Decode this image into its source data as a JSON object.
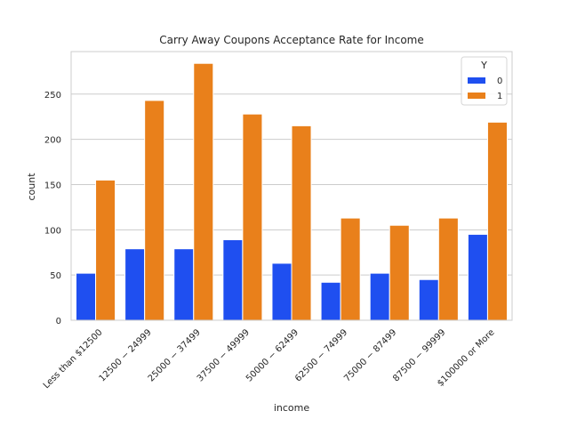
{
  "chart_data": {
    "type": "bar",
    "title": "Carry Away Coupons Acceptance Rate for Income",
    "xlabel": "income",
    "ylabel": "count",
    "categories": [
      "Less than $12500",
      "$12500 - $24999",
      "$25000 - $37499",
      "$37500 - $49999",
      "$50000 - $62499",
      "$62500 - $74999",
      "$75000 - $87499",
      "$87500 - $99999",
      "$100000 or More"
    ],
    "tick_labels": [
      "Less than $12500",
      "12500 − 24999",
      "25000 − 37499",
      "37500 − 49999",
      "50000 − 62499",
      "62500 − 74999",
      "75000 − 87499",
      "87500 − 99999",
      "$100000 or More"
    ],
    "series": [
      {
        "name": "0",
        "color": "#1f4ff0",
        "values": [
          52,
          79,
          79,
          89,
          63,
          42,
          52,
          45,
          95
        ]
      },
      {
        "name": "1",
        "color": "#e9801b",
        "values": [
          155,
          243,
          284,
          228,
          215,
          113,
          105,
          113,
          219
        ]
      }
    ],
    "legend": {
      "title": "Y",
      "position": "top-right"
    },
    "ylim": [
      0,
      297
    ],
    "yticks": [
      0,
      50,
      100,
      150,
      200,
      250
    ],
    "grid": true
  }
}
